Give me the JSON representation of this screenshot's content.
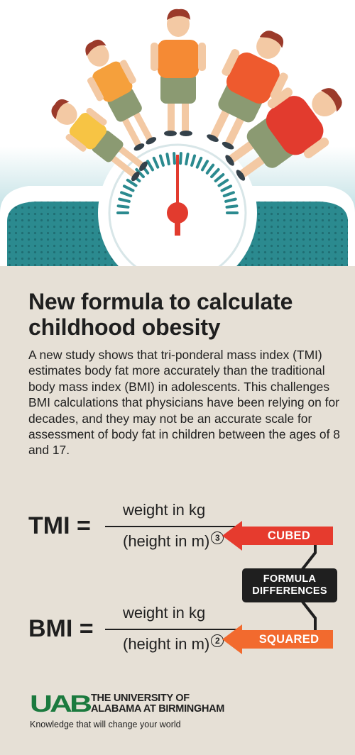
{
  "title": "New formula to calculate childhood obesity",
  "description": "A new study shows that tri-ponderal mass index (TMI) estimates body fat more accurately than the traditional body mass index (BMI) in adolescents. This challenges BMI calculations that physicians have been relying on for decades, and they may not be an accurate scale for assessment of body fat in children between the ages of 8 and 17.",
  "formulas": {
    "tmi": {
      "label": "TMI =",
      "numerator": "weight in kg",
      "denominator": "(height in m)",
      "exponent": "3",
      "arrow_label": "CUBED"
    },
    "bmi": {
      "label": "BMI =",
      "numerator": "weight in kg",
      "denominator": "(height in m)",
      "exponent": "2",
      "arrow_label": "SQUARED"
    },
    "differences_line1": "FORMULA",
    "differences_line2": "DIFFERENCES"
  },
  "footer": {
    "logo_text": "UAB",
    "university_line1": "THE UNIVERSITY OF",
    "university_line2": "ALABAMA AT BIRMINGHAM",
    "tagline": "Knowledge that will change your world"
  },
  "colors": {
    "background": "#e6e0d6",
    "cubed_arrow": "#e63b2e",
    "squared_arrow": "#f26a2e",
    "logo_green": "#1b7a3e",
    "scale_teal": "#2b8a8f"
  }
}
